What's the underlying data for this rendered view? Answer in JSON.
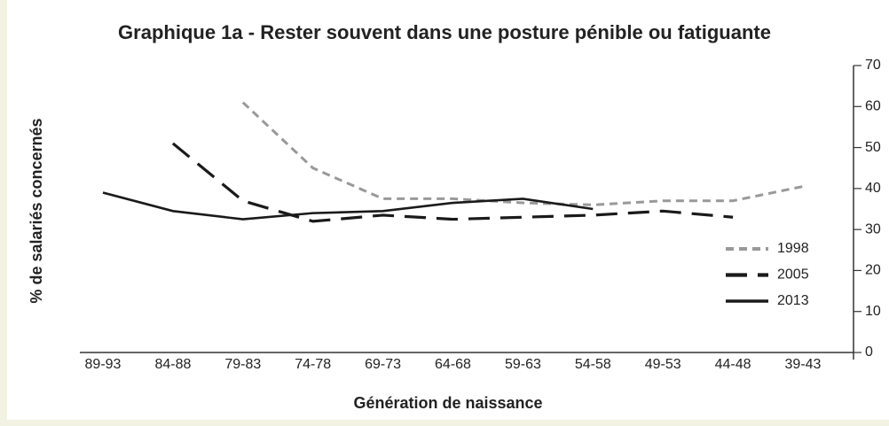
{
  "chart_data": {
    "type": "line",
    "title": "Graphique 1a - Rester souvent dans une posture pénible ou fatiguante",
    "x_label": "Génération de naissance",
    "y_label": "% de salariés concernés",
    "categories": [
      "89-93",
      "84-88",
      "79-83",
      "74-78",
      "69-73",
      "64-68",
      "59-63",
      "54-58",
      "49-53",
      "44-48",
      "39-43"
    ],
    "series": [
      {
        "name": "1998",
        "color": "#999999",
        "values": [
          null,
          null,
          61,
          45,
          37.5,
          37.5,
          36.5,
          36,
          37,
          37,
          40.5
        ]
      },
      {
        "name": "2005",
        "color": "#1a1a1a",
        "values": [
          null,
          51,
          37,
          32,
          33.5,
          32.5,
          33,
          33.5,
          34.5,
          33,
          null
        ]
      },
      {
        "name": "2013",
        "color": "#1a1a1a",
        "values": [
          39,
          34.5,
          32.5,
          34,
          34.5,
          36.5,
          37.5,
          35,
          null,
          null,
          null
        ]
      }
    ],
    "ylim": [
      0,
      70
    ],
    "yticks": [
      0,
      10,
      20,
      30,
      40,
      50,
      60,
      70
    ],
    "y_axis_side": "right",
    "legend": "lower right"
  }
}
